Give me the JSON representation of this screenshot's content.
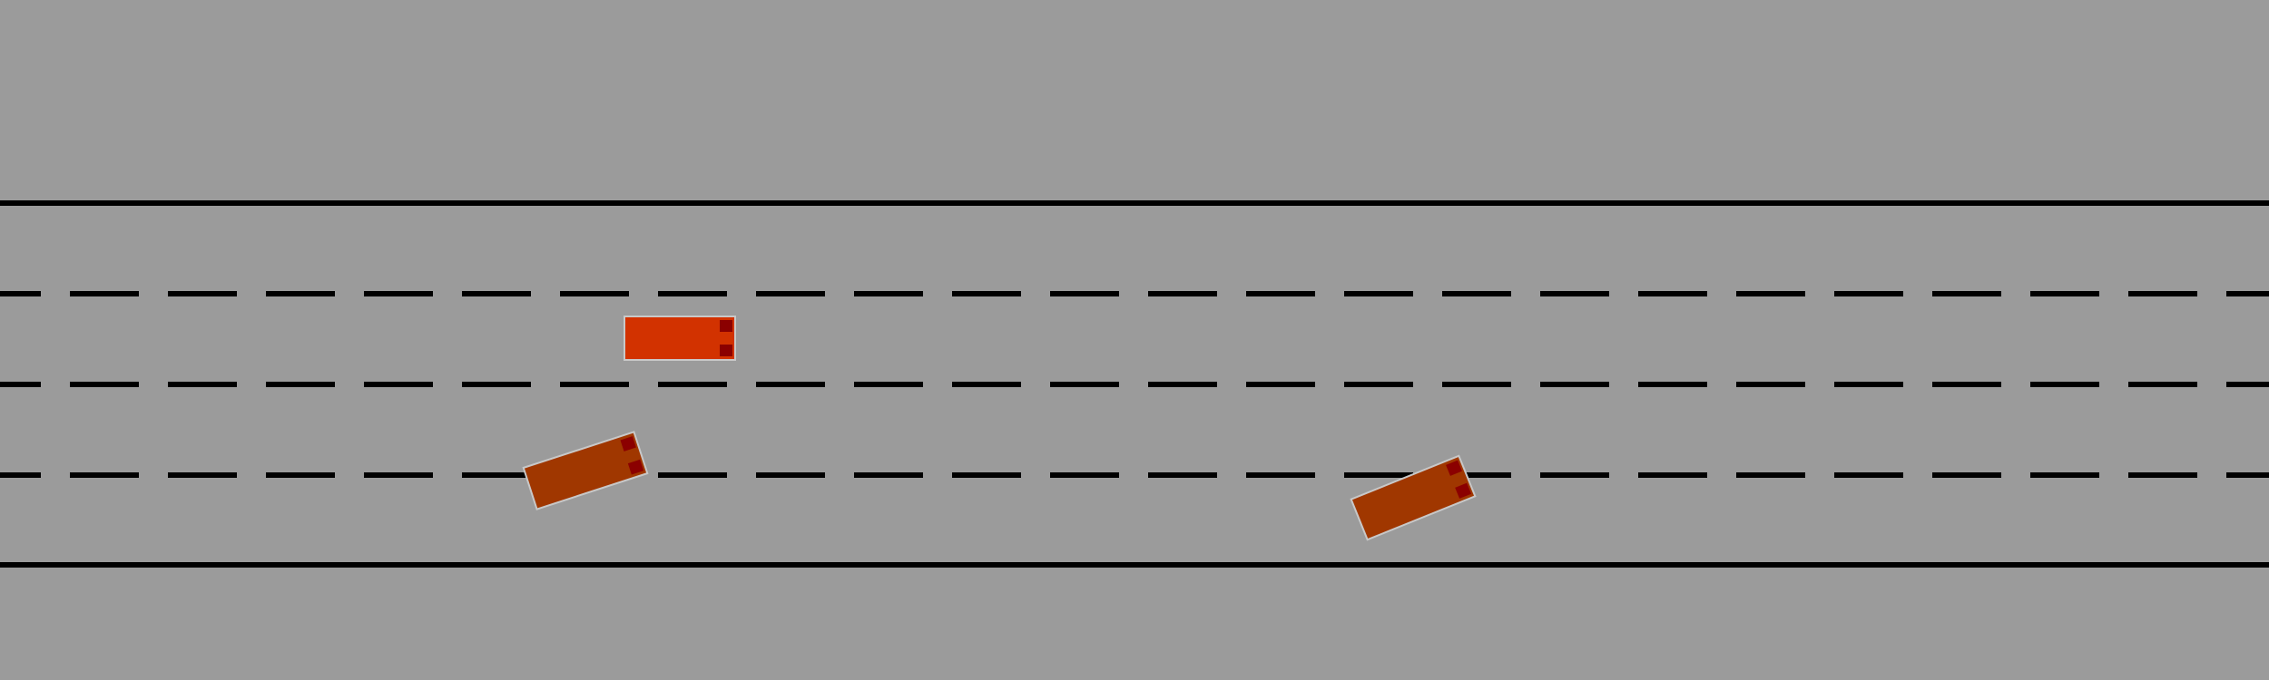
{
  "scene": {
    "type": "top-down highway driving simulation",
    "lane_count": 4,
    "colors": {
      "background": "#9b9b9b",
      "lane_line": "#000000",
      "ego_vehicle": "#d23200",
      "other_vehicle": "#a03700",
      "vehicle_outline": "#c8c8c8",
      "tail_light": "#8b0000"
    }
  },
  "vehicles": [
    {
      "id": "ego",
      "lane": 2,
      "heading_deg": 0
    },
    {
      "id": "vehicle-1",
      "lane": 3,
      "heading_deg": -18
    },
    {
      "id": "vehicle-2",
      "lane": 4,
      "heading_deg": -22
    }
  ]
}
